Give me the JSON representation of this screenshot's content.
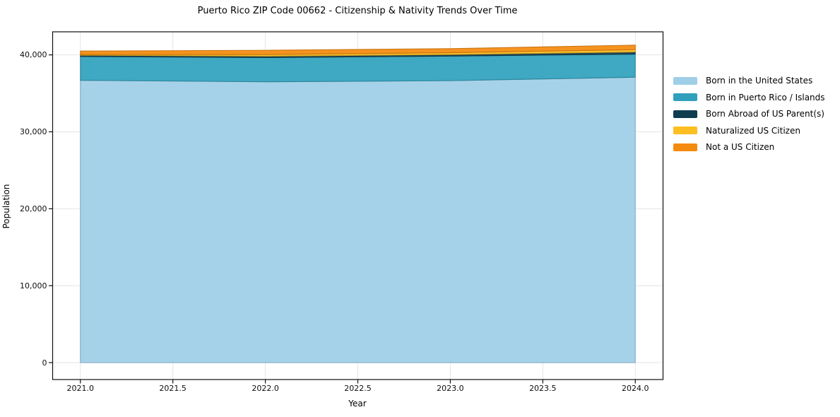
{
  "chart_data": {
    "type": "area",
    "stacked": true,
    "title": "Puerto Rico ZIP Code 00662 - Citizenship & Nativity Trends Over Time",
    "xlabel": "Year",
    "ylabel": "Population",
    "x": [
      2021,
      2022,
      2023,
      2024
    ],
    "series": [
      {
        "name": "Born in the United States",
        "color": "#9fcfe7",
        "values": [
          36700,
          36500,
          36650,
          37100
        ]
      },
      {
        "name": "Born in Puerto Rico / Islands",
        "color": "#30a1bd",
        "values": [
          3100,
          3150,
          3200,
          3000
        ]
      },
      {
        "name": "Born Abroad of US Parent(s)",
        "color": "#103c50",
        "values": [
          150,
          185,
          190,
          280
        ]
      },
      {
        "name": "Naturalized US Citizen",
        "color": "#fcbe20",
        "values": [
          100,
          215,
          245,
          300
        ]
      },
      {
        "name": "Not a US Citizen",
        "color": "#f58b0e",
        "values": [
          450,
          550,
          530,
          590
        ]
      }
    ],
    "xlim": [
      2020.85,
      2024.15
    ],
    "ylim": [
      -2200,
      43000
    ],
    "xticks": {
      "values": [
        2021.0,
        2021.5,
        2022.0,
        2022.5,
        2023.0,
        2023.5,
        2024.0
      ],
      "labels": [
        "2021.0",
        "2021.5",
        "2022.0",
        "2022.5",
        "2023.0",
        "2023.5",
        "2024.0"
      ]
    },
    "yticks": {
      "values": [
        0,
        10000,
        20000,
        30000,
        40000
      ],
      "labels": [
        "0",
        "10,000",
        "20,000",
        "30,000",
        "40,000"
      ]
    },
    "grid": true,
    "legend_position": "right-outside",
    "colors": {
      "grid": "#e4e4e4",
      "axis": "#0f0f0f",
      "background": "#ffffff",
      "text": "#000000"
    }
  }
}
